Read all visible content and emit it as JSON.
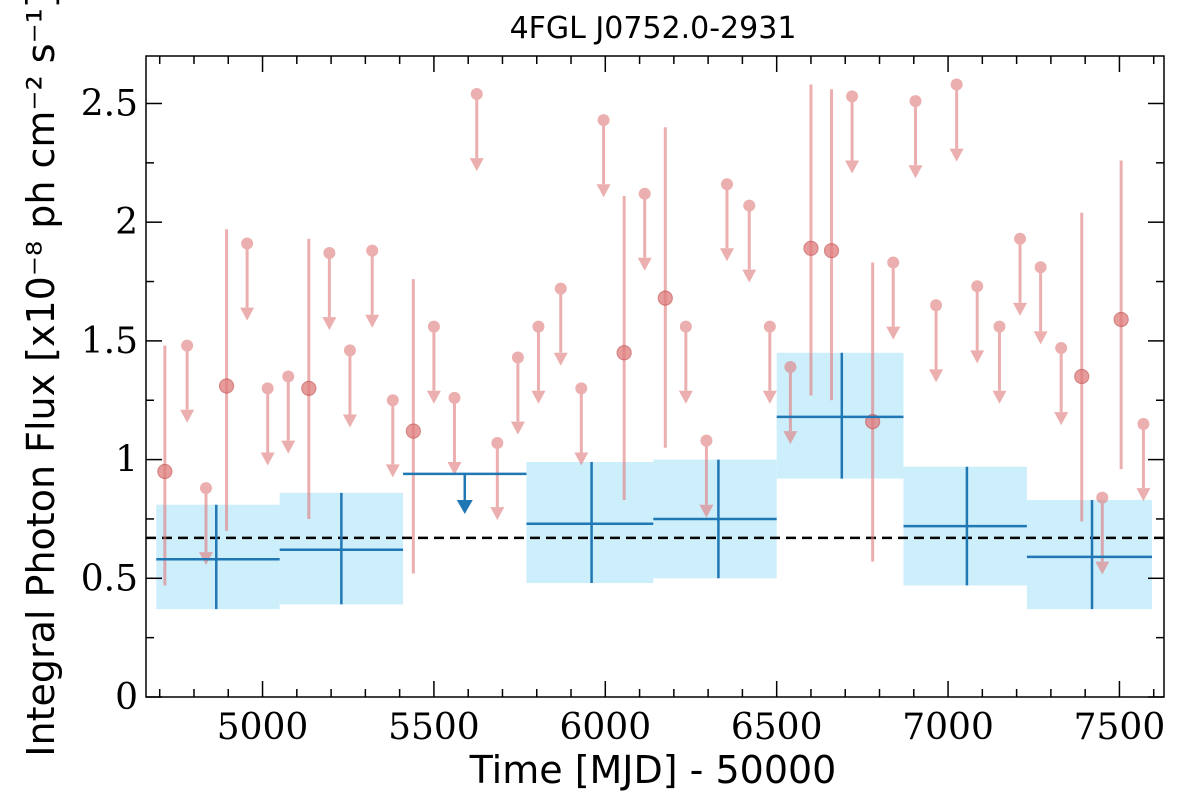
{
  "chart_data": {
    "type": "scatter",
    "title": "4FGL J0752.0-2931",
    "xlabel": "Time [MJD] - 50000",
    "ylabel": "Integral Photon Flux [x10⁻⁸ ph cm⁻² s⁻¹]",
    "xlim": [
      4660,
      7630
    ],
    "ylim": [
      0,
      2.7
    ],
    "x_ticks": [
      5000,
      5500,
      6000,
      6500,
      7000,
      7500
    ],
    "x_tick_labels": [
      "5000",
      "5500",
      "6000",
      "6500",
      "7000",
      "7500"
    ],
    "y_ticks": [
      0,
      0.5,
      1,
      1.5,
      2,
      2.5
    ],
    "y_tick_labels": [
      "0",
      "0.5",
      "1",
      "1.5",
      "2",
      "2.5"
    ],
    "grid": false,
    "average_flux": 0.67,
    "colors": {
      "short_bins": "#e07b7b",
      "long_bins": "#1f77b4",
      "long_bin_band": "#cdeefb",
      "average_line": "#000000"
    },
    "short_bin_detections": [
      {
        "x": 4715,
        "y": 0.95,
        "ylow": 0.47,
        "yhigh": 1.48
      },
      {
        "x": 4895,
        "y": 1.31,
        "ylow": 0.7,
        "yhigh": 1.97
      },
      {
        "x": 5135,
        "y": 1.3,
        "ylow": 0.75,
        "yhigh": 1.93
      },
      {
        "x": 5440,
        "y": 1.12,
        "ylow": 0.52,
        "yhigh": 1.76
      },
      {
        "x": 6055,
        "y": 1.45,
        "ylow": 0.83,
        "yhigh": 2.11
      },
      {
        "x": 6175,
        "y": 1.68,
        "ylow": 1.05,
        "yhigh": 2.4
      },
      {
        "x": 6600,
        "y": 1.89,
        "ylow": 1.27,
        "yhigh": 2.58
      },
      {
        "x": 6660,
        "y": 1.88,
        "ylow": 1.25,
        "yhigh": 2.56
      },
      {
        "x": 6780,
        "y": 1.16,
        "ylow": 0.57,
        "yhigh": 1.83
      },
      {
        "x": 7390,
        "y": 1.35,
        "ylow": 0.74,
        "yhigh": 2.04
      },
      {
        "x": 7505,
        "y": 1.59,
        "ylow": 0.96,
        "yhigh": 2.26
      }
    ],
    "short_bin_upper_limits": [
      {
        "x": 4780,
        "y": 1.48
      },
      {
        "x": 4835,
        "y": 0.88
      },
      {
        "x": 4955,
        "y": 1.91
      },
      {
        "x": 5015,
        "y": 1.3
      },
      {
        "x": 5075,
        "y": 1.35
      },
      {
        "x": 5195,
        "y": 1.87
      },
      {
        "x": 5255,
        "y": 1.46
      },
      {
        "x": 5320,
        "y": 1.88
      },
      {
        "x": 5380,
        "y": 1.25
      },
      {
        "x": 5500,
        "y": 1.56
      },
      {
        "x": 5560,
        "y": 1.26
      },
      {
        "x": 5625,
        "y": 2.54
      },
      {
        "x": 5685,
        "y": 1.07
      },
      {
        "x": 5745,
        "y": 1.43
      },
      {
        "x": 5805,
        "y": 1.56
      },
      {
        "x": 5870,
        "y": 1.72
      },
      {
        "x": 5930,
        "y": 1.3
      },
      {
        "x": 5995,
        "y": 2.43
      },
      {
        "x": 6115,
        "y": 2.12
      },
      {
        "x": 6235,
        "y": 1.56
      },
      {
        "x": 6295,
        "y": 1.08
      },
      {
        "x": 6355,
        "y": 2.16
      },
      {
        "x": 6420,
        "y": 2.07
      },
      {
        "x": 6480,
        "y": 1.56
      },
      {
        "x": 6540,
        "y": 1.39
      },
      {
        "x": 6720,
        "y": 2.53
      },
      {
        "x": 6840,
        "y": 1.83
      },
      {
        "x": 6905,
        "y": 2.51
      },
      {
        "x": 6965,
        "y": 1.65
      },
      {
        "x": 7025,
        "y": 2.58
      },
      {
        "x": 7085,
        "y": 1.73
      },
      {
        "x": 7150,
        "y": 1.56
      },
      {
        "x": 7210,
        "y": 1.93
      },
      {
        "x": 7270,
        "y": 1.81
      },
      {
        "x": 7330,
        "y": 1.47
      },
      {
        "x": 7450,
        "y": 0.84
      },
      {
        "x": 7570,
        "y": 1.15
      }
    ],
    "long_bin_detections": [
      {
        "xmin": 4690,
        "xmax": 5050,
        "x": 4865,
        "y": 0.58,
        "ylow": 0.37,
        "yhigh": 0.81
      },
      {
        "xmin": 5050,
        "xmax": 5410,
        "x": 5230,
        "y": 0.62,
        "ylow": 0.39,
        "yhigh": 0.86
      },
      {
        "xmin": 5770,
        "xmax": 6140,
        "x": 5960,
        "y": 0.73,
        "ylow": 0.48,
        "yhigh": 0.99
      },
      {
        "xmin": 6140,
        "xmax": 6500,
        "x": 6330,
        "y": 0.75,
        "ylow": 0.5,
        "yhigh": 1.0
      },
      {
        "xmin": 6500,
        "xmax": 6870,
        "x": 6690,
        "y": 1.18,
        "ylow": 0.92,
        "yhigh": 1.45
      },
      {
        "xmin": 6870,
        "xmax": 7230,
        "x": 7055,
        "y": 0.72,
        "ylow": 0.47,
        "yhigh": 0.97
      },
      {
        "xmin": 7230,
        "xmax": 7595,
        "x": 7420,
        "y": 0.59,
        "ylow": 0.37,
        "yhigh": 0.83
      }
    ],
    "long_bin_upper_limits": [
      {
        "xmin": 5410,
        "xmax": 5770,
        "x": 5590,
        "y": 0.94
      }
    ]
  }
}
